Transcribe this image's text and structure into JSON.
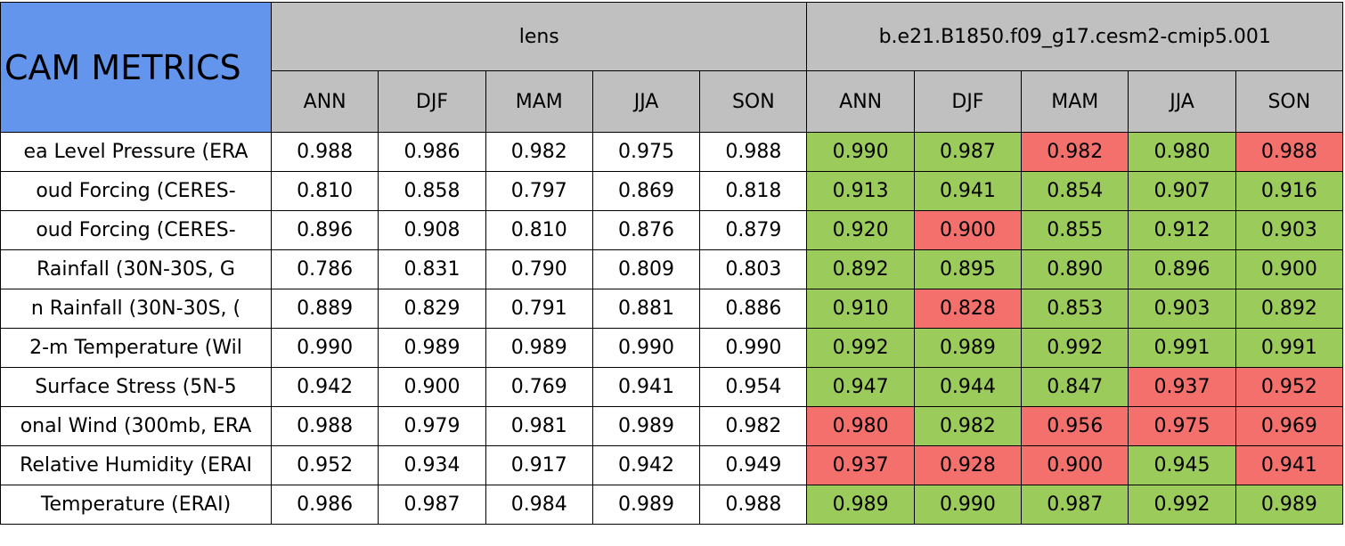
{
  "table": {
    "title": "CAM METRICS",
    "groups": [
      "lens",
      "b.e21.B1850.f09_g17.cesm2-cmip5.001"
    ],
    "seasons": [
      "ANN",
      "DJF",
      "MAM",
      "JJA",
      "SON"
    ],
    "group_fills": [
      "#ffffff",
      "#9bcb5a"
    ],
    "rows": [
      {
        "label": "ea Level Pressure (ERA",
        "lens": [
          "0.988",
          "0.986",
          "0.982",
          "0.975",
          "0.988"
        ],
        "cesm": [
          "0.990",
          "0.987",
          "0.982",
          "0.980",
          "0.988"
        ],
        "fills": [
          "#9bcb5a",
          "#9bcb5a",
          "#f4706c",
          "#9bcb5a",
          "#f4706c"
        ]
      },
      {
        "label": "oud Forcing (CERES-",
        "lens": [
          "0.810",
          "0.858",
          "0.797",
          "0.869",
          "0.818"
        ],
        "cesm": [
          "0.913",
          "0.941",
          "0.854",
          "0.907",
          "0.916"
        ],
        "fills": [
          "#9bcb5a",
          "#9bcb5a",
          "#9bcb5a",
          "#9bcb5a",
          "#9bcb5a"
        ]
      },
      {
        "label": "oud Forcing (CERES-",
        "lens": [
          "0.896",
          "0.908",
          "0.810",
          "0.876",
          "0.879"
        ],
        "cesm": [
          "0.920",
          "0.900",
          "0.855",
          "0.912",
          "0.903"
        ],
        "fills": [
          "#9bcb5a",
          "#f4706c",
          "#9bcb5a",
          "#9bcb5a",
          "#9bcb5a"
        ]
      },
      {
        "label": "Rainfall (30N-30S, G",
        "lens": [
          "0.786",
          "0.831",
          "0.790",
          "0.809",
          "0.803"
        ],
        "cesm": [
          "0.892",
          "0.895",
          "0.890",
          "0.896",
          "0.900"
        ],
        "fills": [
          "#9bcb5a",
          "#9bcb5a",
          "#9bcb5a",
          "#9bcb5a",
          "#9bcb5a"
        ]
      },
      {
        "label": "n Rainfall (30N-30S, (",
        "lens": [
          "0.889",
          "0.829",
          "0.791",
          "0.881",
          "0.886"
        ],
        "cesm": [
          "0.910",
          "0.828",
          "0.853",
          "0.903",
          "0.892"
        ],
        "fills": [
          "#9bcb5a",
          "#f4706c",
          "#9bcb5a",
          "#9bcb5a",
          "#9bcb5a"
        ]
      },
      {
        "label": "2-m Temperature (Wil",
        "lens": [
          "0.990",
          "0.989",
          "0.989",
          "0.990",
          "0.990"
        ],
        "cesm": [
          "0.992",
          "0.989",
          "0.992",
          "0.991",
          "0.991"
        ],
        "fills": [
          "#9bcb5a",
          "#9bcb5a",
          "#9bcb5a",
          "#9bcb5a",
          "#9bcb5a"
        ]
      },
      {
        "label": "Surface Stress (5N-5",
        "lens": [
          "0.942",
          "0.900",
          "0.769",
          "0.941",
          "0.954"
        ],
        "cesm": [
          "0.947",
          "0.944",
          "0.847",
          "0.937",
          "0.952"
        ],
        "fills": [
          "#9bcb5a",
          "#9bcb5a",
          "#9bcb5a",
          "#f4706c",
          "#f4706c"
        ]
      },
      {
        "label": "onal Wind (300mb, ERA",
        "lens": [
          "0.988",
          "0.979",
          "0.981",
          "0.989",
          "0.982"
        ],
        "cesm": [
          "0.980",
          "0.982",
          "0.956",
          "0.975",
          "0.969"
        ],
        "fills": [
          "#f4706c",
          "#9bcb5a",
          "#f4706c",
          "#f4706c",
          "#f4706c"
        ]
      },
      {
        "label": "Relative Humidity (ERAI",
        "lens": [
          "0.952",
          "0.934",
          "0.917",
          "0.942",
          "0.949"
        ],
        "cesm": [
          "0.937",
          "0.928",
          "0.900",
          "0.945",
          "0.941"
        ],
        "fills": [
          "#f4706c",
          "#f4706c",
          "#f4706c",
          "#9bcb5a",
          "#f4706c"
        ]
      },
      {
        "label": "Temperature (ERAI)",
        "lens": [
          "0.986",
          "0.987",
          "0.984",
          "0.989",
          "0.988"
        ],
        "cesm": [
          "0.989",
          "0.990",
          "0.987",
          "0.992",
          "0.989"
        ],
        "fills": [
          "#9bcb5a",
          "#9bcb5a",
          "#9bcb5a",
          "#9bcb5a",
          "#9bcb5a"
        ]
      }
    ]
  }
}
